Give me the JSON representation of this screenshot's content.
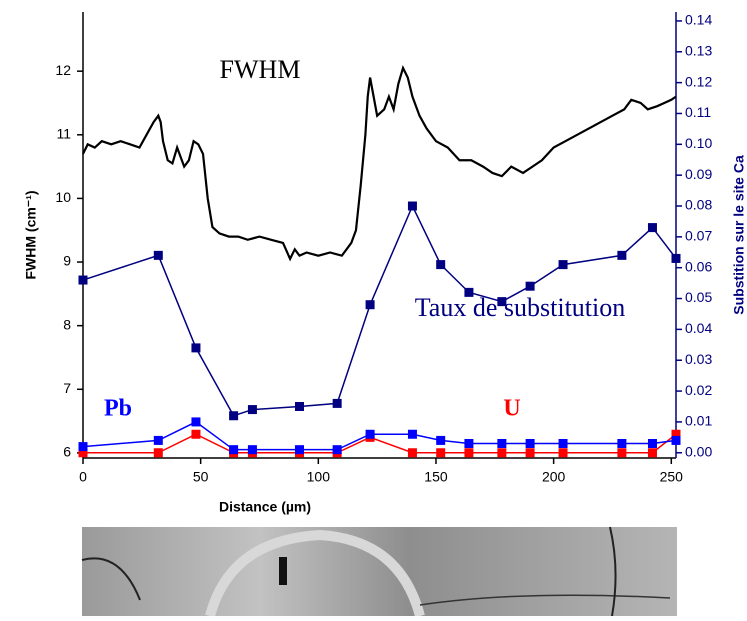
{
  "chart_data": {
    "type": "line",
    "x_label": "Distance (µm)",
    "y_label": "FWHM (cm⁻¹)",
    "y2_label": "Substition sur le site Ca",
    "xlim": [
      0,
      252
    ],
    "xticks": [
      0,
      50,
      100,
      150,
      200,
      250
    ],
    "ylim": [
      5.92,
      12.93
    ],
    "yticks": [
      6,
      7,
      8,
      9,
      10,
      11,
      12
    ],
    "y2lim": [
      -0.0017,
      0.1429
    ],
    "y2ticks": [
      {
        "value": 0,
        "label": "0.00"
      },
      {
        "value": 0.01,
        "label": "0.01"
      },
      {
        "value": 0.02,
        "label": "0.02"
      },
      {
        "value": 0.03,
        "label": "0.03"
      },
      {
        "value": 0.04,
        "label": "0.04"
      },
      {
        "value": 0.05,
        "label": "0.05"
      },
      {
        "value": 0.06,
        "label": "0.06"
      },
      {
        "value": 0.07,
        "label": "0.07"
      },
      {
        "value": 0.08,
        "label": "0.08"
      },
      {
        "value": 0.09,
        "label": "0.09"
      },
      {
        "value": 0.1,
        "label": "0.10"
      },
      {
        "value": 0.11,
        "label": "0.11"
      },
      {
        "value": 0.12,
        "label": "0.12"
      },
      {
        "value": 0.13,
        "label": "0.13"
      },
      {
        "value": 0.14,
        "label": "0.14"
      }
    ],
    "series": [
      {
        "name": "FWHM",
        "color": "#000000",
        "marker": false,
        "x": [
          0,
          2,
          5,
          8,
          12,
          16,
          20,
          24,
          27,
          30,
          32,
          33,
          34,
          36,
          38,
          40,
          42,
          43,
          45,
          47,
          49,
          51,
          53,
          55,
          58,
          62,
          66,
          70,
          75,
          80,
          85,
          88,
          90,
          92,
          95,
          100,
          105,
          110,
          114,
          116,
          118,
          120,
          121,
          122,
          123,
          125,
          128,
          130,
          132,
          134,
          136,
          138,
          140,
          143,
          146,
          150,
          155,
          160,
          165,
          170,
          174,
          178,
          182,
          187,
          191,
          195,
          200,
          205,
          210,
          215,
          220,
          225,
          230,
          233,
          237,
          240,
          244,
          247,
          250,
          252
        ],
        "values": [
          10.7,
          10.85,
          10.8,
          10.9,
          10.85,
          10.9,
          10.85,
          10.8,
          11.0,
          11.2,
          11.3,
          11.2,
          10.9,
          10.6,
          10.55,
          10.8,
          10.6,
          10.5,
          10.6,
          10.9,
          10.85,
          10.7,
          10.0,
          9.55,
          9.45,
          9.4,
          9.4,
          9.35,
          9.4,
          9.35,
          9.3,
          9.05,
          9.2,
          9.1,
          9.15,
          9.1,
          9.15,
          9.1,
          9.3,
          9.5,
          10.2,
          11.0,
          11.6,
          11.9,
          11.7,
          11.3,
          11.4,
          11.6,
          11.4,
          11.8,
          12.05,
          11.9,
          11.6,
          11.3,
          11.1,
          10.9,
          10.8,
          10.6,
          10.6,
          10.5,
          10.4,
          10.35,
          10.5,
          10.4,
          10.5,
          10.6,
          10.8,
          10.9,
          11.0,
          11.1,
          11.2,
          11.3,
          11.4,
          11.55,
          11.5,
          11.4,
          11.45,
          11.5,
          11.55,
          11.6
        ]
      },
      {
        "name": "Taux de substitution",
        "color": "#000080",
        "marker": true,
        "axis": "y2",
        "x": [
          0,
          32,
          48,
          64,
          72,
          92,
          108,
          122,
          140,
          152,
          164,
          178,
          190,
          204,
          229,
          242,
          252
        ],
        "values": [
          0.056,
          0.064,
          0.034,
          0.012,
          0.014,
          0.015,
          0.016,
          0.048,
          0.08,
          0.061,
          0.052,
          0.049,
          0.054,
          0.061,
          0.064,
          0.073,
          0.063
        ]
      },
      {
        "name": "Pb",
        "color": "#0000ff",
        "marker": true,
        "axis": "y2",
        "x": [
          0,
          32,
          48,
          64,
          72,
          92,
          108,
          122,
          140,
          152,
          164,
          178,
          190,
          204,
          229,
          242,
          252
        ],
        "values": [
          0.002,
          0.004,
          0.01,
          0.001,
          0.001,
          0.001,
          0.001,
          0.006,
          0.006,
          0.004,
          0.003,
          0.003,
          0.003,
          0.003,
          0.003,
          0.003,
          0.004
        ]
      },
      {
        "name": "U",
        "color": "#ff0000",
        "marker": true,
        "axis": "y2",
        "x": [
          0,
          32,
          48,
          64,
          72,
          92,
          108,
          122,
          140,
          152,
          164,
          178,
          190,
          204,
          229,
          242,
          252
        ],
        "values": [
          0.0,
          0.0,
          0.006,
          0.0,
          0.0,
          0.0,
          0.0,
          0.005,
          0.0,
          0.0,
          0.0,
          0.0,
          0.0,
          0.0,
          0.0,
          0.0,
          0.006
        ]
      }
    ]
  }
}
